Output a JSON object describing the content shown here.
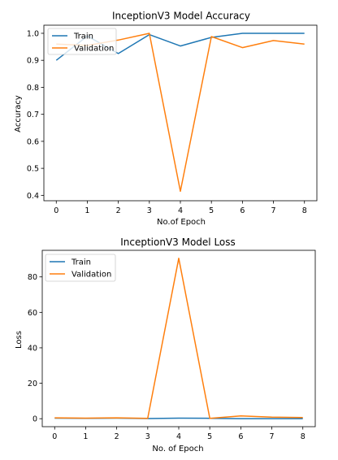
{
  "chart_data": [
    {
      "type": "line",
      "title": "InceptionV3 Model Accuracy",
      "xlabel": "No.of Epoch",
      "ylabel": "Accuracy",
      "x": [
        0,
        1,
        2,
        3,
        4,
        5,
        6,
        7,
        8
      ],
      "xlim": [
        -0.4,
        8.4
      ],
      "ylim": [
        0.38,
        1.03
      ],
      "xticks": [
        "0",
        "1",
        "2",
        "3",
        "4",
        "5",
        "6",
        "7",
        "8"
      ],
      "yticks": [
        "0.4",
        "0.5",
        "0.6",
        "0.7",
        "0.8",
        "0.9",
        "1.0"
      ],
      "yticks_values": [
        0.4,
        0.5,
        0.6,
        0.7,
        0.8,
        0.9,
        1.0
      ],
      "legend": "upper-left",
      "grid": false,
      "series": [
        {
          "name": "Train",
          "color": "#1f77b4",
          "values": [
            0.9,
            0.99,
            0.925,
            0.995,
            0.953,
            0.985,
            1.0,
            1.0,
            1.0
          ]
        },
        {
          "name": "Validation",
          "color": "#ff7f0e",
          "values": [
            0.96,
            0.955,
            0.975,
            1.0,
            0.415,
            0.988,
            0.947,
            0.973,
            0.96
          ]
        }
      ]
    },
    {
      "type": "line",
      "title": "InceptionV3 Model Loss",
      "xlabel": "No. of Epoch",
      "ylabel": "Loss",
      "x": [
        0,
        1,
        2,
        3,
        4,
        5,
        6,
        7,
        8
      ],
      "xlim": [
        -0.4,
        8.4
      ],
      "ylim": [
        -4.5,
        95
      ],
      "xticks": [
        "0",
        "1",
        "2",
        "3",
        "4",
        "5",
        "6",
        "7",
        "8"
      ],
      "yticks": [
        "0",
        "20",
        "40",
        "60",
        "80"
      ],
      "yticks_values": [
        0,
        20,
        40,
        60,
        80
      ],
      "legend": "upper-left",
      "grid": false,
      "series": [
        {
          "name": "Train",
          "color": "#1f77b4",
          "values": [
            0.3,
            0.2,
            0.3,
            0.1,
            0.3,
            0.2,
            0.05,
            0.05,
            0.05
          ]
        },
        {
          "name": "Validation",
          "color": "#ff7f0e",
          "values": [
            0.5,
            0.3,
            0.5,
            0.2,
            90.5,
            0.2,
            1.6,
            0.9,
            0.7
          ]
        }
      ]
    }
  ]
}
